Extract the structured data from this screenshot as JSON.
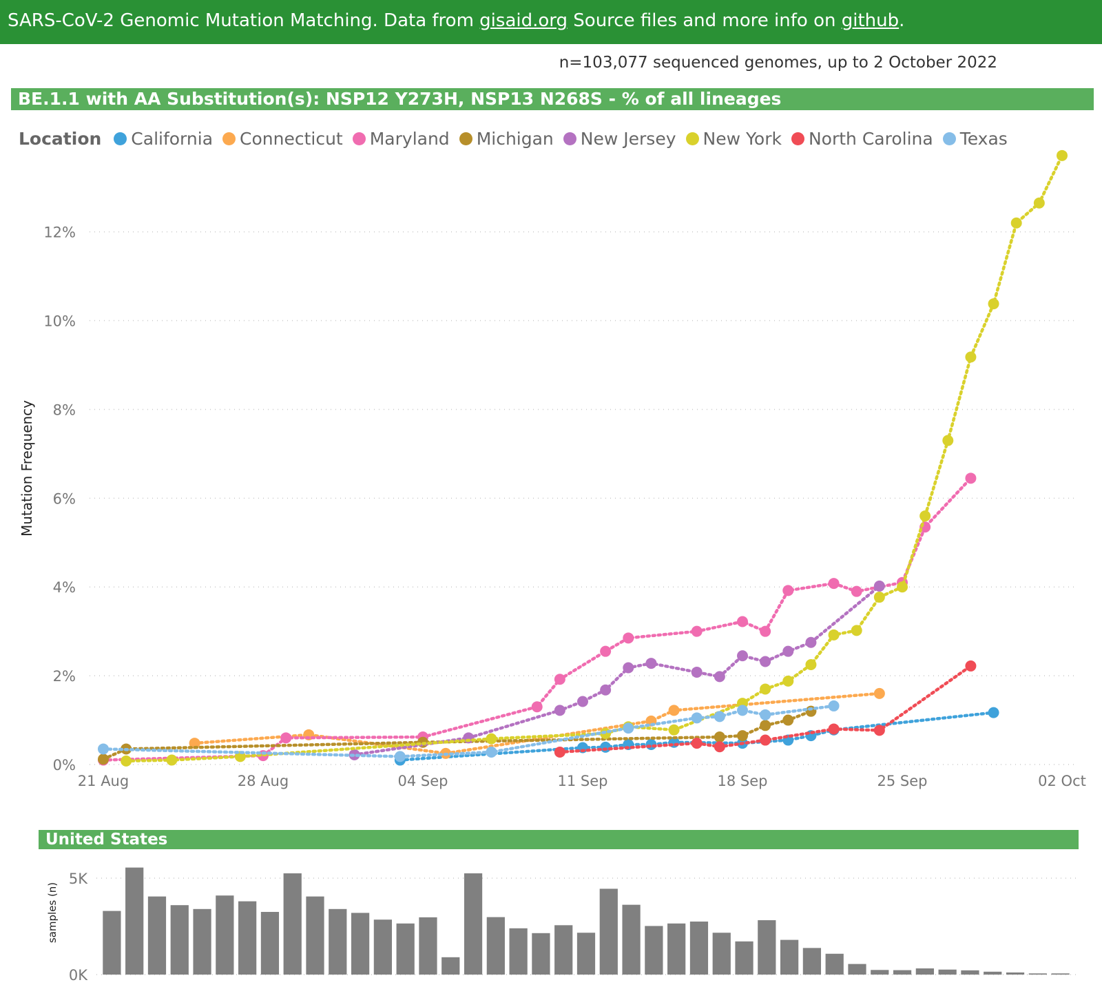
{
  "header": {
    "prefix": "SARS-CoV-2 Genomic Mutation Matching. Data from ",
    "link1": "gisaid.org",
    "middle": " Source files and more info on ",
    "link2": "github",
    "suffix": "."
  },
  "sample_note": "n=103,077 sequenced genomes, up to 2 October 2022",
  "chart_title": "BE.1.1 with AA Substitution(s): NSP12 Y273H, NSP13 N268S - % of all lineages",
  "legend": {
    "title": "Location",
    "items": [
      {
        "name": "California",
        "color": "#3fa2db"
      },
      {
        "name": "Connecticut",
        "color": "#fca94f"
      },
      {
        "name": "Maryland",
        "color": "#f06cb0"
      },
      {
        "name": "Michigan",
        "color": "#b78f2a"
      },
      {
        "name": "New Jersey",
        "color": "#b472c1"
      },
      {
        "name": "New York",
        "color": "#d9d12c"
      },
      {
        "name": "North Carolina",
        "color": "#f04c55"
      },
      {
        "name": "Texas",
        "color": "#85bde8"
      }
    ]
  },
  "region_title": "United States",
  "chart_data": [
    {
      "type": "line",
      "title": "BE.1.1 with AA Substitution(s): NSP12 Y273H, NSP13 N268S - % of all lineages",
      "ylabel": "Mutation Frequency",
      "xlabel": "",
      "x_ticks": [
        "21 Aug",
        "28 Aug",
        "04 Sep",
        "11 Sep",
        "18 Sep",
        "25 Sep",
        "02 Oct"
      ],
      "x_range": [
        "2022-08-21",
        "2022-10-02"
      ],
      "y_ticks": [
        "0%",
        "2%",
        "4%",
        "6%",
        "8%",
        "10%",
        "12%"
      ],
      "ylim": [
        0,
        13.5
      ],
      "grid": true,
      "legend_position": "top-left",
      "series": [
        {
          "name": "California",
          "color": "#3fa2db",
          "points": [
            [
              "2022-09-03",
              0.1
            ],
            [
              "2022-09-11",
              0.38
            ],
            [
              "2022-09-12",
              0.39
            ],
            [
              "2022-09-13",
              0.45
            ],
            [
              "2022-09-14",
              0.45
            ],
            [
              "2022-09-15",
              0.5
            ],
            [
              "2022-09-18",
              0.48
            ],
            [
              "2022-09-20",
              0.55
            ],
            [
              "2022-09-21",
              0.65
            ],
            [
              "2022-09-22",
              0.78
            ],
            [
              "2022-09-29",
              1.17
            ]
          ]
        },
        {
          "name": "Connecticut",
          "color": "#fca94f",
          "points": [
            [
              "2022-08-25",
              0.48
            ],
            [
              "2022-08-30",
              0.67
            ],
            [
              "2022-09-05",
              0.25
            ],
            [
              "2022-09-14",
              0.98
            ],
            [
              "2022-09-15",
              1.22
            ],
            [
              "2022-09-24",
              1.6
            ]
          ]
        },
        {
          "name": "Maryland",
          "color": "#f06cb0",
          "points": [
            [
              "2022-08-21",
              0.1
            ],
            [
              "2022-08-28",
              0.2
            ],
            [
              "2022-08-29",
              0.6
            ],
            [
              "2022-09-04",
              0.62
            ],
            [
              "2022-09-09",
              1.3
            ],
            [
              "2022-09-10",
              1.92
            ],
            [
              "2022-09-12",
              2.55
            ],
            [
              "2022-09-13",
              2.85
            ],
            [
              "2022-09-16",
              3.0
            ],
            [
              "2022-09-18",
              3.22
            ],
            [
              "2022-09-19",
              3.0
            ],
            [
              "2022-09-20",
              3.92
            ],
            [
              "2022-09-22",
              4.08
            ],
            [
              "2022-09-23",
              3.9
            ],
            [
              "2022-09-25",
              4.1
            ],
            [
              "2022-09-26",
              5.35
            ],
            [
              "2022-09-28",
              6.45
            ]
          ]
        },
        {
          "name": "Michigan",
          "color": "#b78f2a",
          "points": [
            [
              "2022-08-21",
              0.12
            ],
            [
              "2022-08-22",
              0.35
            ],
            [
              "2022-09-04",
              0.5
            ],
            [
              "2022-09-17",
              0.62
            ],
            [
              "2022-09-18",
              0.65
            ],
            [
              "2022-09-19",
              0.88
            ],
            [
              "2022-09-20",
              1.0
            ],
            [
              "2022-09-21",
              1.2
            ]
          ]
        },
        {
          "name": "New Jersey",
          "color": "#b472c1",
          "points": [
            [
              "2022-09-01",
              0.22
            ],
            [
              "2022-09-06",
              0.6
            ],
            [
              "2022-09-10",
              1.22
            ],
            [
              "2022-09-11",
              1.42
            ],
            [
              "2022-09-12",
              1.68
            ],
            [
              "2022-09-13",
              2.18
            ],
            [
              "2022-09-14",
              2.28
            ],
            [
              "2022-09-16",
              2.08
            ],
            [
              "2022-09-17",
              1.98
            ],
            [
              "2022-09-18",
              2.45
            ],
            [
              "2022-09-19",
              2.32
            ],
            [
              "2022-09-20",
              2.55
            ],
            [
              "2022-09-21",
              2.75
            ],
            [
              "2022-09-24",
              4.02
            ]
          ]
        },
        {
          "name": "New York",
          "color": "#d9d12c",
          "points": [
            [
              "2022-08-22",
              0.08
            ],
            [
              "2022-08-24",
              0.1
            ],
            [
              "2022-08-27",
              0.18
            ],
            [
              "2022-09-07",
              0.58
            ],
            [
              "2022-09-12",
              0.7
            ],
            [
              "2022-09-13",
              0.85
            ],
            [
              "2022-09-15",
              0.78
            ],
            [
              "2022-09-18",
              1.38
            ],
            [
              "2022-09-19",
              1.7
            ],
            [
              "2022-09-20",
              1.88
            ],
            [
              "2022-09-21",
              2.25
            ],
            [
              "2022-09-22",
              2.92
            ],
            [
              "2022-09-23",
              3.02
            ],
            [
              "2022-09-24",
              3.77
            ],
            [
              "2022-09-25",
              4.0
            ],
            [
              "2022-09-26",
              5.6
            ],
            [
              "2022-09-27",
              7.3
            ],
            [
              "2022-09-28",
              9.18
            ],
            [
              "2022-09-29",
              10.38
            ],
            [
              "2022-09-30",
              12.2
            ],
            [
              "2022-10-01",
              12.65
            ],
            [
              "2022-10-02",
              13.72
            ]
          ]
        },
        {
          "name": "North Carolina",
          "color": "#f04c55",
          "points": [
            [
              "2022-09-10",
              0.28
            ],
            [
              "2022-09-16",
              0.48
            ],
            [
              "2022-09-17",
              0.4
            ],
            [
              "2022-09-19",
              0.55
            ],
            [
              "2022-09-22",
              0.8
            ],
            [
              "2022-09-24",
              0.77
            ],
            [
              "2022-09-28",
              2.22
            ]
          ]
        },
        {
          "name": "Texas",
          "color": "#85bde8",
          "points": [
            [
              "2022-08-21",
              0.35
            ],
            [
              "2022-09-03",
              0.18
            ],
            [
              "2022-09-07",
              0.28
            ],
            [
              "2022-09-13",
              0.82
            ],
            [
              "2022-09-16",
              1.05
            ],
            [
              "2022-09-17",
              1.08
            ],
            [
              "2022-09-18",
              1.22
            ],
            [
              "2022-09-19",
              1.12
            ],
            [
              "2022-09-22",
              1.32
            ]
          ]
        }
      ]
    },
    {
      "type": "bar",
      "title": "United States",
      "ylabel": "samples (n)",
      "y_ticks": [
        "0K",
        "5K"
      ],
      "ylim": [
        0,
        5500
      ],
      "categories": [
        "2022-08-21",
        "2022-08-22",
        "2022-08-23",
        "2022-08-24",
        "2022-08-25",
        "2022-08-26",
        "2022-08-27",
        "2022-08-28",
        "2022-08-29",
        "2022-08-30",
        "2022-08-31",
        "2022-09-01",
        "2022-09-02",
        "2022-09-03",
        "2022-09-04",
        "2022-09-05",
        "2022-09-06",
        "2022-09-07",
        "2022-09-08",
        "2022-09-09",
        "2022-09-10",
        "2022-09-11",
        "2022-09-12",
        "2022-09-13",
        "2022-09-14",
        "2022-09-15",
        "2022-09-16",
        "2022-09-17",
        "2022-09-18",
        "2022-09-19",
        "2022-09-20",
        "2022-09-21",
        "2022-09-22",
        "2022-09-23",
        "2022-09-24",
        "2022-09-25",
        "2022-09-26",
        "2022-09-27",
        "2022-09-28",
        "2022-09-29",
        "2022-09-30",
        "2022-10-01",
        "2022-10-02"
      ],
      "values": [
        3300,
        5550,
        4050,
        3600,
        3400,
        4100,
        3800,
        3250,
        5250,
        4050,
        3400,
        3200,
        2850,
        2650,
        2970,
        900,
        5250,
        2980,
        2400,
        2150,
        2560,
        2170,
        4450,
        3620,
        2520,
        2650,
        2750,
        2170,
        1720,
        2820,
        1800,
        1380,
        1080,
        550,
        240,
        230,
        320,
        260,
        220,
        150,
        110,
        60,
        60
      ]
    }
  ]
}
